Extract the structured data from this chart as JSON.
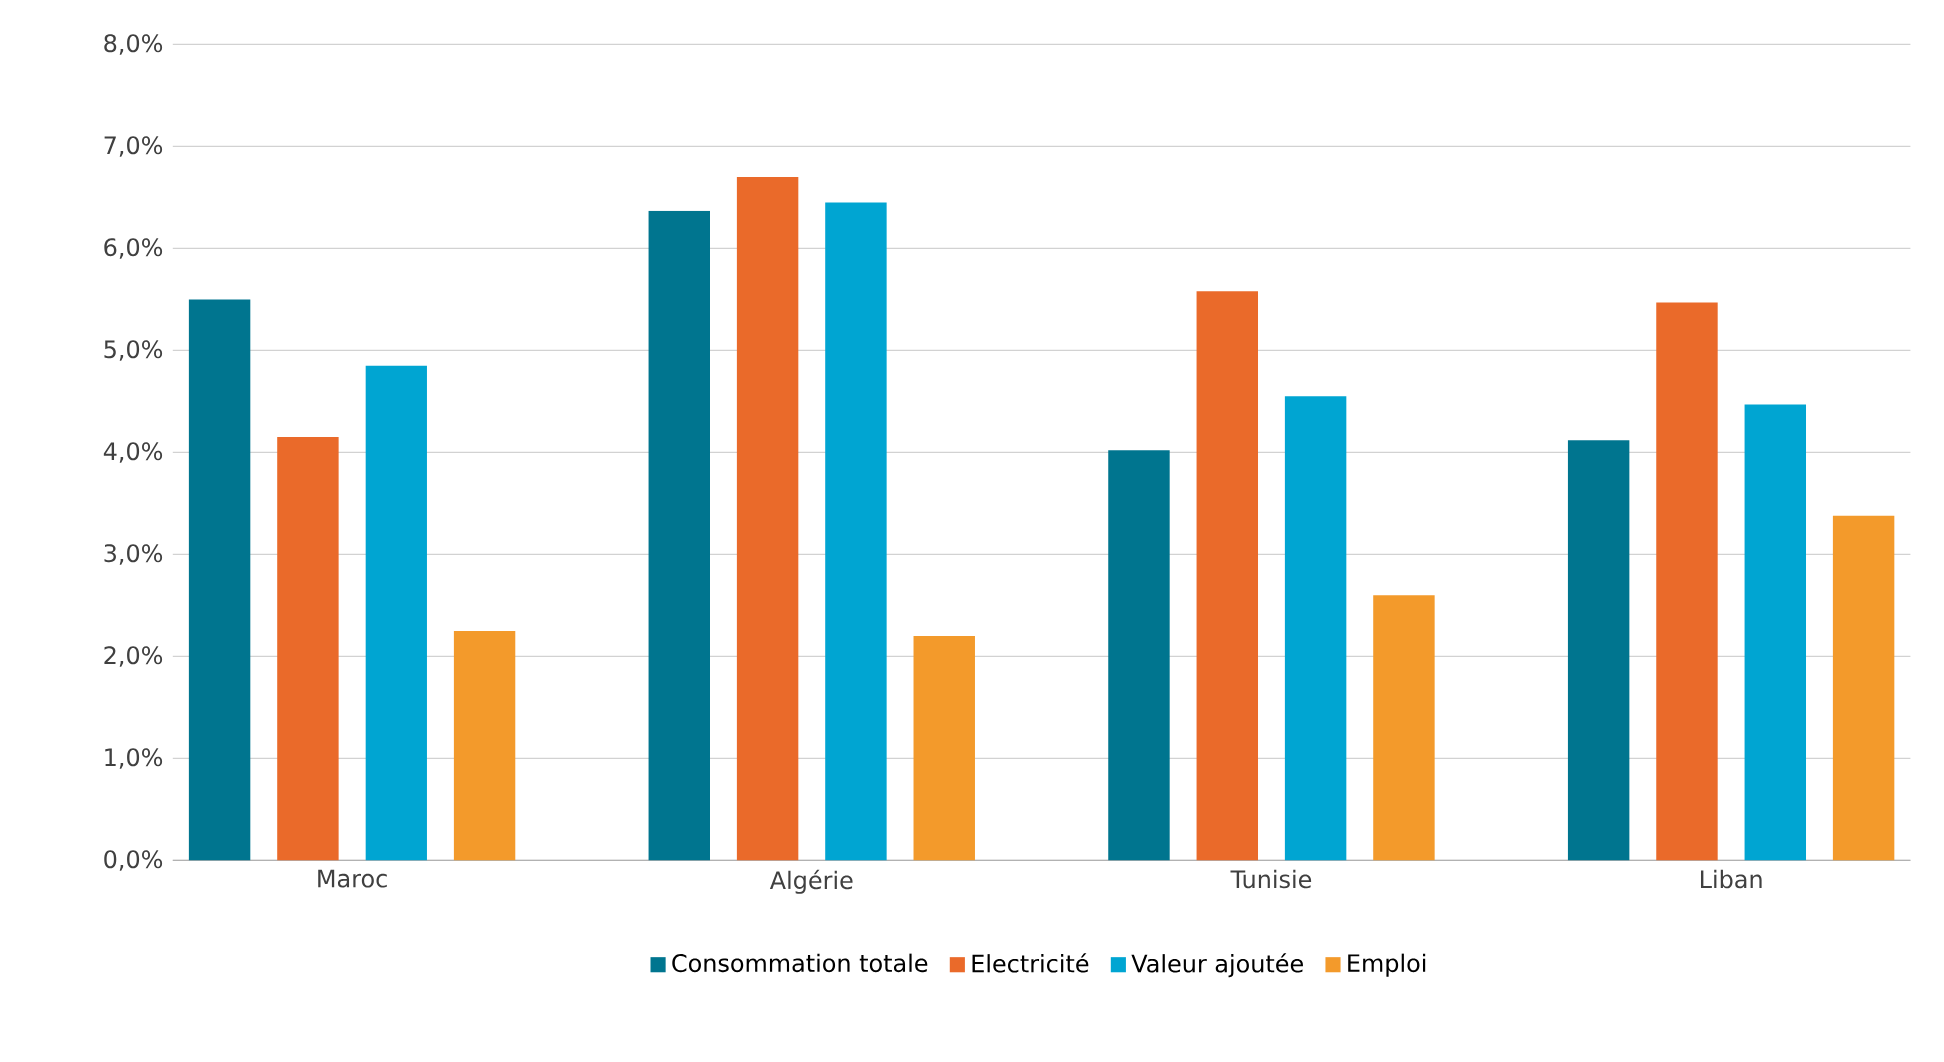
{
  "chart_data": {
    "type": "bar",
    "categories": [
      "Maroc",
      "Algérie",
      "Tunisie",
      "Liban"
    ],
    "series": [
      {
        "name": "Consommation totale",
        "color": "#00758f",
        "values": [
          5.5,
          6.37,
          4.02,
          4.12
        ]
      },
      {
        "name": "Electricité",
        "color": "#ea6a2a",
        "values": [
          4.15,
          6.7,
          5.58,
          5.47
        ]
      },
      {
        "name": "Valeur ajoutée",
        "color": "#00a5d2",
        "values": [
          4.85,
          6.45,
          4.55,
          4.47
        ]
      },
      {
        "name": "Emploi",
        "color": "#f39a2b",
        "values": [
          2.25,
          2.2,
          2.6,
          3.38
        ]
      }
    ],
    "ylim": [
      0,
      8
    ],
    "yticks": [
      {
        "value": 0,
        "label": "0,0%"
      },
      {
        "value": 1,
        "label": "1,0%"
      },
      {
        "value": 2,
        "label": "2,0%"
      },
      {
        "value": 3,
        "label": "3,0%"
      },
      {
        "value": 4,
        "label": "4,0%"
      },
      {
        "value": 5,
        "label": "5,0%"
      },
      {
        "value": 6,
        "label": "6,0%"
      },
      {
        "value": 7,
        "label": "7,0%"
      },
      {
        "value": 8,
        "label": "8,0%"
      }
    ],
    "grid": "y",
    "legend": "bottom"
  }
}
